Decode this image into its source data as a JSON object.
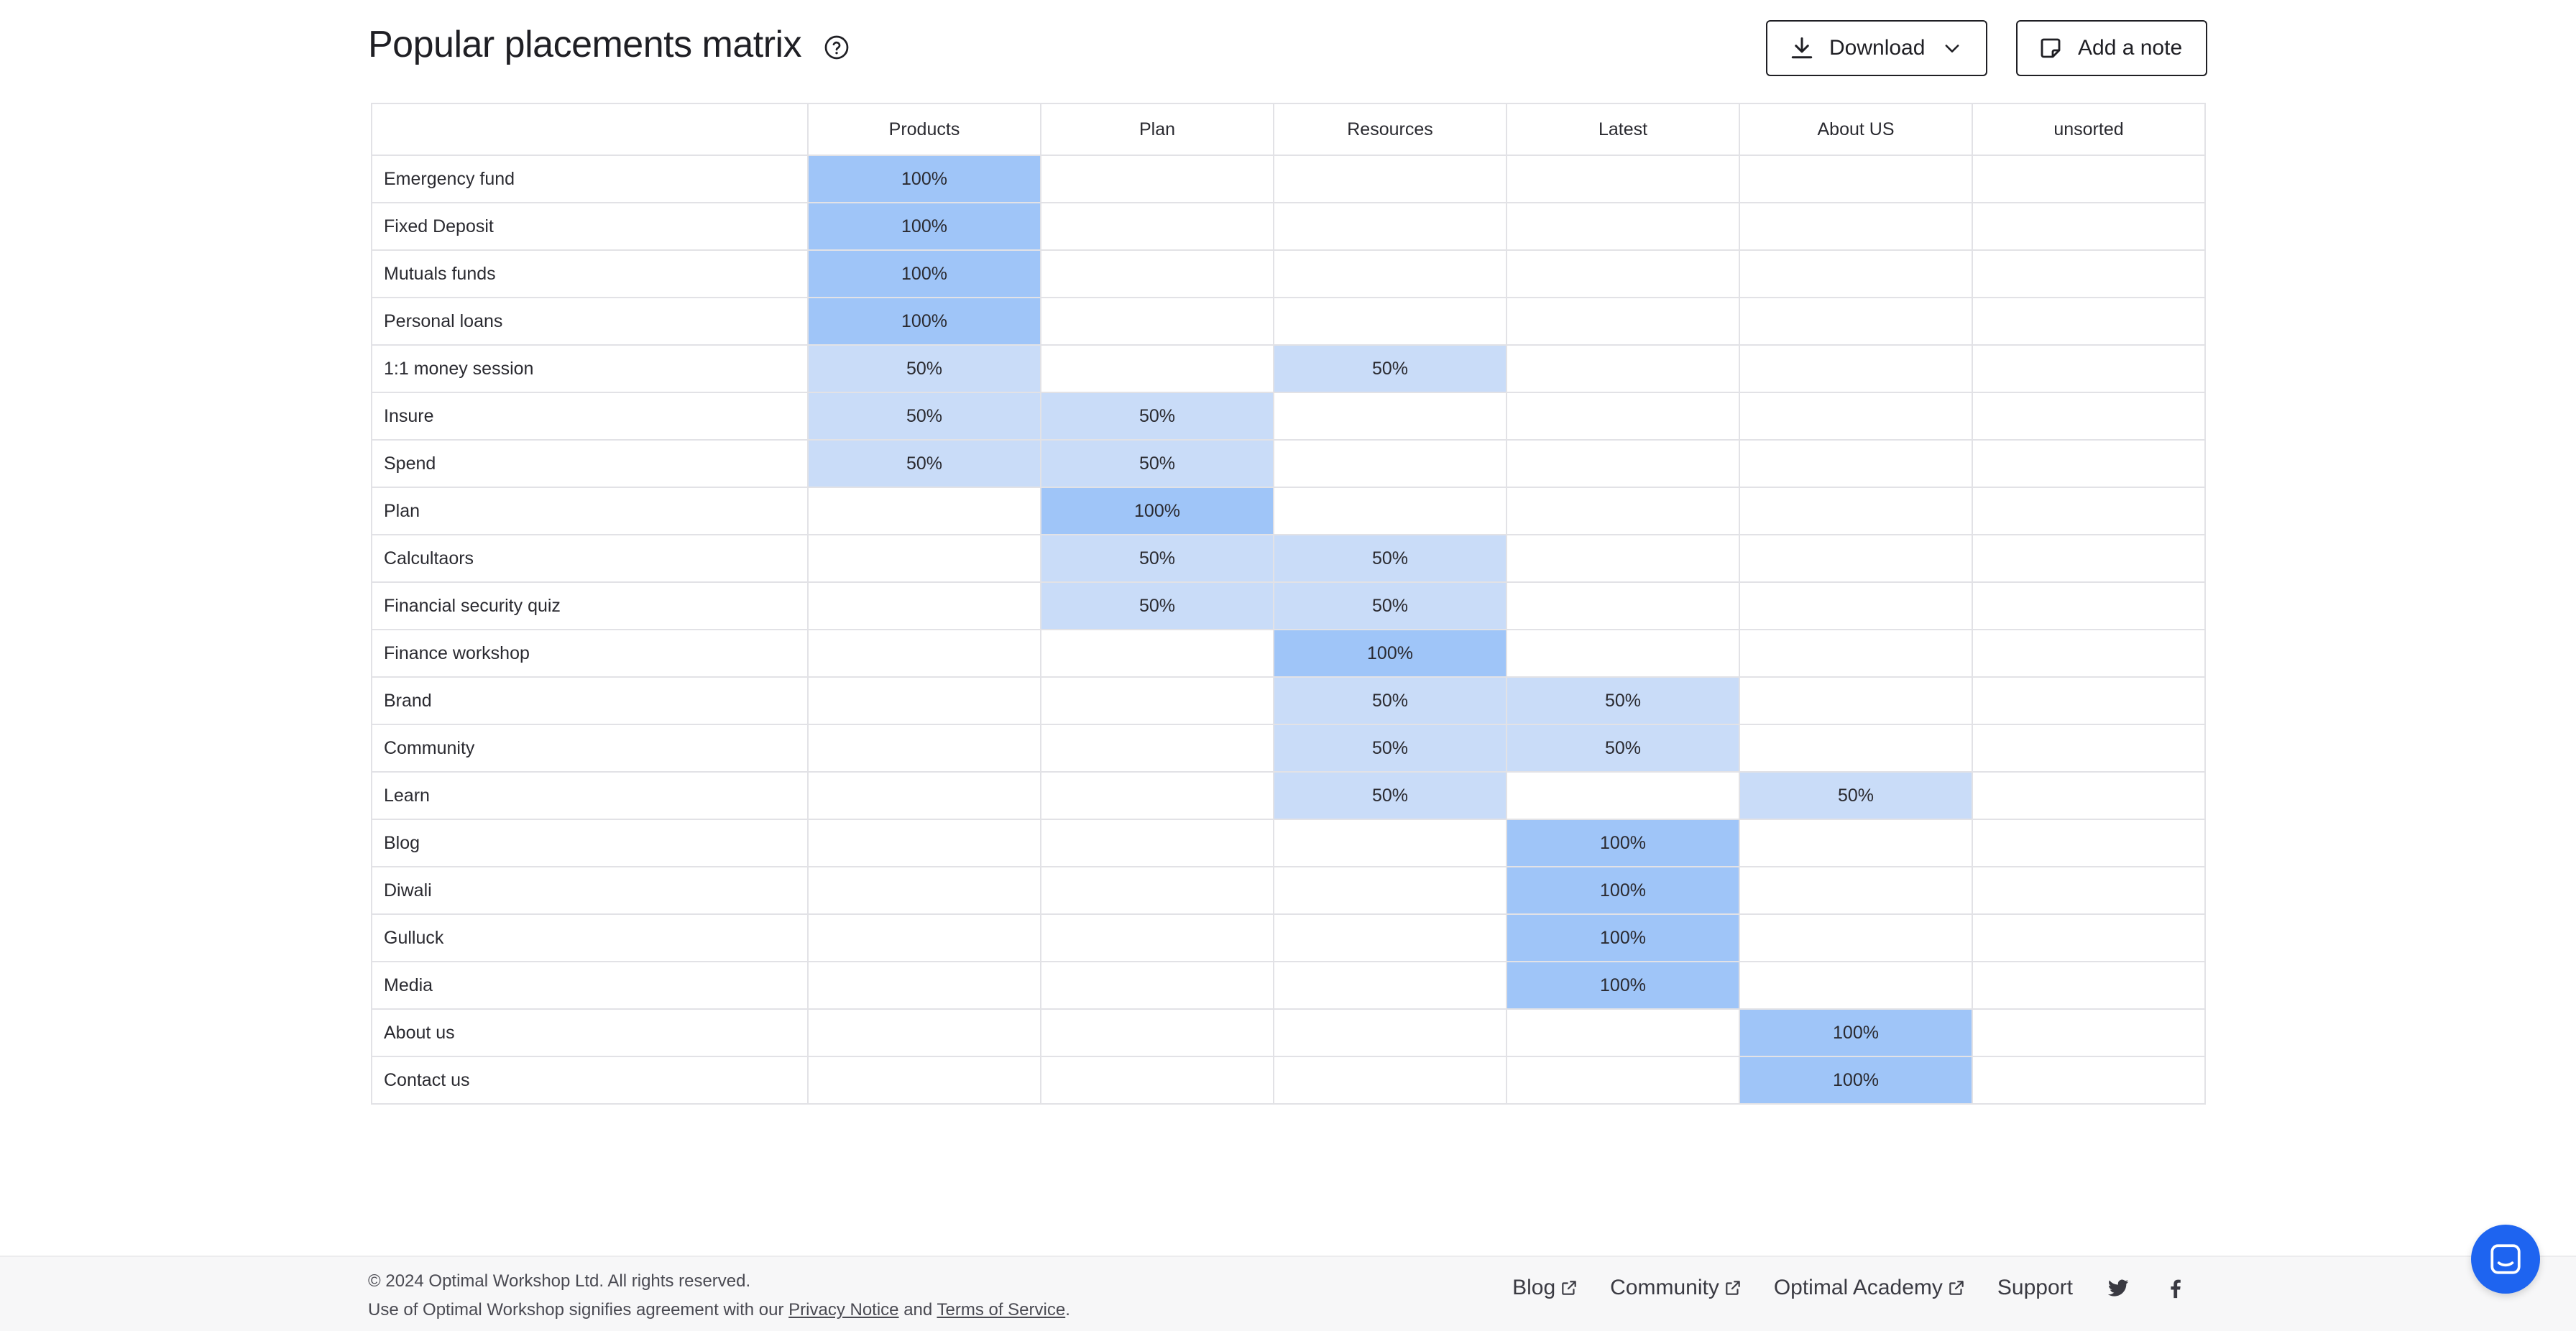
{
  "header": {
    "title": "Popular placements matrix",
    "download_label": "Download",
    "add_note_label": "Add a note"
  },
  "matrix": {
    "columns": [
      "Products",
      "Plan",
      "Resources",
      "Latest",
      "About US",
      "unsorted"
    ],
    "rows": [
      {
        "label": "Emergency fund",
        "cells": [
          "100%",
          "",
          "",
          "",
          "",
          ""
        ]
      },
      {
        "label": "Fixed Deposit",
        "cells": [
          "100%",
          "",
          "",
          "",
          "",
          ""
        ]
      },
      {
        "label": "Mutuals funds",
        "cells": [
          "100%",
          "",
          "",
          "",
          "",
          ""
        ]
      },
      {
        "label": "Personal loans",
        "cells": [
          "100%",
          "",
          "",
          "",
          "",
          ""
        ]
      },
      {
        "label": "1:1 money session",
        "cells": [
          "50%",
          "",
          "50%",
          "",
          "",
          ""
        ]
      },
      {
        "label": "Insure",
        "cells": [
          "50%",
          "50%",
          "",
          "",
          "",
          ""
        ]
      },
      {
        "label": "Spend",
        "cells": [
          "50%",
          "50%",
          "",
          "",
          "",
          ""
        ]
      },
      {
        "label": "Plan",
        "cells": [
          "",
          "100%",
          "",
          "",
          "",
          ""
        ]
      },
      {
        "label": "Calcultaors",
        "cells": [
          "",
          "50%",
          "50%",
          "",
          "",
          ""
        ]
      },
      {
        "label": "Financial security quiz",
        "cells": [
          "",
          "50%",
          "50%",
          "",
          "",
          ""
        ]
      },
      {
        "label": "Finance workshop",
        "cells": [
          "",
          "",
          "100%",
          "",
          "",
          ""
        ]
      },
      {
        "label": "Brand",
        "cells": [
          "",
          "",
          "50%",
          "50%",
          "",
          ""
        ]
      },
      {
        "label": "Community",
        "cells": [
          "",
          "",
          "50%",
          "50%",
          "",
          ""
        ]
      },
      {
        "label": "Learn",
        "cells": [
          "",
          "",
          "50%",
          "",
          "50%",
          ""
        ]
      },
      {
        "label": "Blog",
        "cells": [
          "",
          "",
          "",
          "100%",
          "",
          ""
        ]
      },
      {
        "label": "Diwali",
        "cells": [
          "",
          "",
          "",
          "100%",
          "",
          ""
        ]
      },
      {
        "label": "Gulluck",
        "cells": [
          "",
          "",
          "",
          "100%",
          "",
          ""
        ]
      },
      {
        "label": "Media",
        "cells": [
          "",
          "",
          "",
          "100%",
          "",
          ""
        ]
      },
      {
        "label": "About us",
        "cells": [
          "",
          "",
          "",
          "",
          "100%",
          ""
        ]
      },
      {
        "label": "Contact us",
        "cells": [
          "",
          "",
          "",
          "",
          "100%",
          ""
        ]
      }
    ],
    "colors": {
      "full": "#9fc5f8",
      "half": "#c9dcf8",
      "border": "#e2e2e6"
    }
  },
  "footer": {
    "copyright": "© 2024 Optimal Workshop Ltd. All rights reserved.",
    "legal_prefix": "Use of Optimal Workshop signifies agreement with our",
    "privacy_label": "Privacy Notice",
    "legal_and": "and",
    "terms_label": "Terms of Service",
    "legal_suffix": ".",
    "links": [
      {
        "label": "Blog",
        "external": true
      },
      {
        "label": "Community",
        "external": true
      },
      {
        "label": "Optimal Academy",
        "external": true
      },
      {
        "label": "Support",
        "external": false
      }
    ],
    "social_icons": [
      "twitter-icon",
      "facebook-icon"
    ]
  },
  "chat": {
    "icon": "chat-icon",
    "color": "#1e64f0"
  }
}
